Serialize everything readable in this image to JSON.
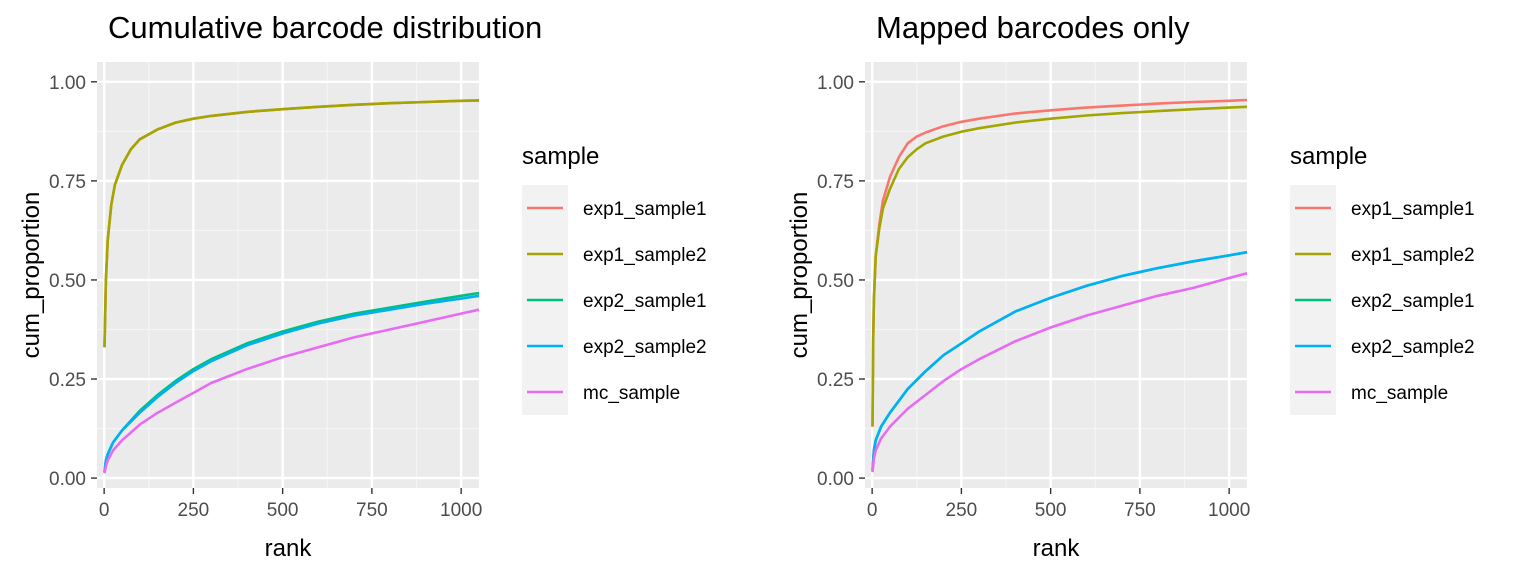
{
  "chart_data": [
    {
      "type": "line",
      "title": "Cumulative barcode distribution",
      "xlabel": "rank",
      "ylabel": "cum_proportion",
      "xlim": [
        -20,
        1050
      ],
      "ylim": [
        -0.025,
        1.05
      ],
      "xticks": [
        0,
        250,
        500,
        750,
        1000
      ],
      "yticks": [
        0.0,
        0.25,
        0.5,
        0.75,
        1.0
      ],
      "ytick_labels": [
        "0.00",
        "0.25",
        "0.50",
        "0.75",
        "1.00"
      ],
      "grid": true,
      "legend": {
        "title": "sample",
        "position": "right"
      },
      "series": [
        {
          "name": "exp1_sample1",
          "color": "#F8766D",
          "x": [
            1,
            5,
            10,
            20,
            30,
            50,
            75,
            100,
            150,
            200,
            250,
            300,
            400,
            500,
            600,
            700,
            800,
            900,
            1000,
            1050
          ],
          "y": [
            0.33,
            0.5,
            0.6,
            0.69,
            0.74,
            0.79,
            0.83,
            0.855,
            0.88,
            0.897,
            0.907,
            0.914,
            0.924,
            0.931,
            0.937,
            0.942,
            0.946,
            0.949,
            0.952,
            0.953
          ]
        },
        {
          "name": "exp1_sample2",
          "color": "#A3A500",
          "x": [
            1,
            5,
            10,
            20,
            30,
            50,
            75,
            100,
            150,
            200,
            250,
            300,
            400,
            500,
            600,
            700,
            800,
            900,
            1000,
            1050
          ],
          "y": [
            0.33,
            0.5,
            0.6,
            0.69,
            0.74,
            0.79,
            0.83,
            0.855,
            0.88,
            0.897,
            0.907,
            0.914,
            0.924,
            0.931,
            0.937,
            0.942,
            0.946,
            0.949,
            0.952,
            0.953
          ]
        },
        {
          "name": "exp2_sample1",
          "color": "#00BF7D",
          "x": [
            1,
            5,
            10,
            25,
            50,
            100,
            150,
            200,
            250,
            300,
            400,
            500,
            600,
            700,
            800,
            900,
            1000,
            1050
          ],
          "y": [
            0.015,
            0.045,
            0.06,
            0.09,
            0.12,
            0.17,
            0.21,
            0.245,
            0.275,
            0.3,
            0.34,
            0.37,
            0.395,
            0.415,
            0.43,
            0.445,
            0.46,
            0.467
          ]
        },
        {
          "name": "exp2_sample2",
          "color": "#00B0F6",
          "x": [
            1,
            5,
            10,
            25,
            50,
            100,
            150,
            200,
            250,
            300,
            400,
            500,
            600,
            700,
            800,
            900,
            1000,
            1050
          ],
          "y": [
            0.015,
            0.045,
            0.06,
            0.09,
            0.12,
            0.165,
            0.205,
            0.24,
            0.27,
            0.295,
            0.335,
            0.365,
            0.39,
            0.41,
            0.425,
            0.44,
            0.453,
            0.46
          ]
        },
        {
          "name": "mc_sample",
          "color": "#E76BF3",
          "x": [
            1,
            5,
            10,
            25,
            50,
            100,
            150,
            200,
            250,
            300,
            400,
            500,
            600,
            700,
            800,
            900,
            1000,
            1050
          ],
          "y": [
            0.012,
            0.03,
            0.045,
            0.07,
            0.095,
            0.135,
            0.165,
            0.19,
            0.215,
            0.24,
            0.275,
            0.305,
            0.33,
            0.355,
            0.375,
            0.395,
            0.415,
            0.425
          ]
        }
      ]
    },
    {
      "type": "line",
      "title": "Mapped barcodes only",
      "xlabel": "rank",
      "ylabel": "cum_proportion",
      "xlim": [
        -20,
        1050
      ],
      "ylim": [
        -0.025,
        1.05
      ],
      "xticks": [
        0,
        250,
        500,
        750,
        1000
      ],
      "yticks": [
        0.0,
        0.25,
        0.5,
        0.75,
        1.0
      ],
      "ytick_labels": [
        "0.00",
        "0.25",
        "0.50",
        "0.75",
        "1.00"
      ],
      "grid": true,
      "legend": {
        "title": "sample",
        "position": "right"
      },
      "series": [
        {
          "name": "exp1_sample1",
          "color": "#F8766D",
          "x": [
            1,
            3,
            5,
            10,
            20,
            30,
            50,
            75,
            100,
            125,
            150,
            200,
            250,
            300,
            400,
            500,
            600,
            700,
            800,
            900,
            1000,
            1050
          ],
          "y": [
            0.13,
            0.35,
            0.45,
            0.56,
            0.64,
            0.7,
            0.76,
            0.81,
            0.845,
            0.862,
            0.872,
            0.888,
            0.899,
            0.907,
            0.92,
            0.928,
            0.935,
            0.94,
            0.945,
            0.949,
            0.952,
            0.954
          ]
        },
        {
          "name": "exp1_sample2",
          "color": "#A3A500",
          "x": [
            1,
            3,
            5,
            10,
            20,
            30,
            50,
            75,
            100,
            125,
            150,
            200,
            250,
            300,
            400,
            500,
            600,
            700,
            800,
            900,
            1000,
            1050
          ],
          "y": [
            0.13,
            0.35,
            0.45,
            0.56,
            0.63,
            0.68,
            0.73,
            0.78,
            0.81,
            0.83,
            0.845,
            0.862,
            0.874,
            0.883,
            0.897,
            0.907,
            0.915,
            0.921,
            0.926,
            0.931,
            0.935,
            0.937
          ]
        },
        {
          "name": "exp2_sample1",
          "color": "#00BF7D",
          "x": [
            1,
            5,
            10,
            25,
            50,
            100,
            150,
            200,
            250,
            300,
            400,
            500,
            600,
            700,
            800,
            900,
            1000,
            1050
          ],
          "y": [
            0.02,
            0.07,
            0.095,
            0.13,
            0.165,
            0.225,
            0.27,
            0.31,
            0.34,
            0.37,
            0.42,
            0.455,
            0.485,
            0.51,
            0.53,
            0.547,
            0.562,
            0.57
          ]
        },
        {
          "name": "exp2_sample2",
          "color": "#00B0F6",
          "x": [
            1,
            5,
            10,
            25,
            50,
            100,
            150,
            200,
            250,
            300,
            400,
            500,
            600,
            700,
            800,
            900,
            1000,
            1050
          ],
          "y": [
            0.02,
            0.07,
            0.095,
            0.13,
            0.165,
            0.225,
            0.27,
            0.31,
            0.34,
            0.37,
            0.42,
            0.455,
            0.485,
            0.51,
            0.53,
            0.547,
            0.562,
            0.57
          ]
        },
        {
          "name": "mc_sample",
          "color": "#E76BF3",
          "x": [
            1,
            5,
            10,
            25,
            50,
            100,
            150,
            200,
            250,
            300,
            400,
            500,
            600,
            700,
            800,
            900,
            1000,
            1050
          ],
          "y": [
            0.015,
            0.05,
            0.07,
            0.1,
            0.13,
            0.175,
            0.21,
            0.245,
            0.275,
            0.3,
            0.345,
            0.38,
            0.41,
            0.435,
            0.46,
            0.48,
            0.505,
            0.517
          ]
        }
      ]
    }
  ]
}
